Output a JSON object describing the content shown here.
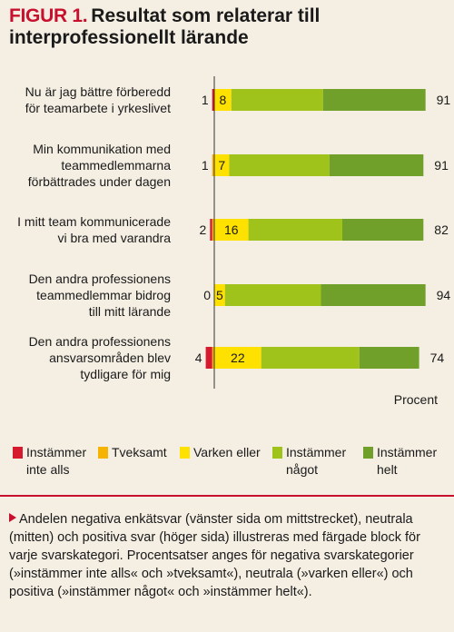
{
  "header": {
    "figure_label": "FIGUR 1.",
    "title": "Resultat som relaterar till interprofessionellt lärande"
  },
  "chart_data": {
    "type": "bar",
    "orientation": "horizontal",
    "stacked": true,
    "diverging": true,
    "categories": [
      "Nu är jag bättre förberedd för teamarbete i yrkeslivet",
      "Min kommunikation med teammedlemmarna förbättrades under dagen",
      "I mitt team kommunicerade vi bra med varandra",
      "Den andra professionens teammedlemmar bidrog till mitt lärande",
      "Den andra professionens ansvarsområden blev tydligare för mig"
    ],
    "category_lines": [
      [
        "Nu är jag bättre förberedd",
        "för teamarbete i yrkeslivet"
      ],
      [
        "Min kommunikation med",
        "teammedlemmarna",
        "förbättrades under dagen"
      ],
      [
        "I mitt team kommunicerade",
        "vi bra med varandra"
      ],
      [
        "Den andra professionens",
        "teammedlemmar bidrog",
        "till mitt lärande"
      ],
      [
        "Den andra professionens",
        "ansvarsområden blev",
        "tydligare för mig"
      ]
    ],
    "series": [
      {
        "name": "Instämmer inte alls",
        "color": "#d7192d",
        "values": [
          1,
          0,
          1,
          0,
          3
        ]
      },
      {
        "name": "Tveksamt",
        "color": "#f6b300",
        "values": [
          0,
          1,
          1,
          0,
          1
        ]
      },
      {
        "name": "Varken eller",
        "color": "#ffe100",
        "values": [
          8,
          7,
          16,
          5,
          22
        ]
      },
      {
        "name": "Instämmer något",
        "color": "#9fc31b",
        "values": [
          43,
          47,
          44,
          45,
          46
        ]
      },
      {
        "name": "Instämmer helt",
        "color": "#71a02a",
        "values": [
          48,
          44,
          38,
          49,
          28
        ]
      }
    ],
    "legend_lines": [
      [
        "Instämmer",
        "inte alls"
      ],
      [
        "Tveksamt"
      ],
      [
        "Varken eller"
      ],
      [
        "Instämmer",
        "något"
      ],
      [
        "Instämmer",
        "helt"
      ]
    ],
    "negative_labels": [
      "1",
      "1",
      "2",
      "0",
      "4"
    ],
    "neutral_labels": [
      "8",
      "7",
      "16",
      "5",
      "22"
    ],
    "positive_labels": [
      "91",
      "91",
      "82",
      "94",
      "74"
    ],
    "xlabel": "Procent",
    "legend_position": "bottom",
    "grid": false
  },
  "footnote": "Andelen negativa enkätsvar (vänster sida om mittstrecket), neutrala (mitten) och positiva svar (höger sida) illustreras med färgade block för varje svarskategori. Procentsatser anges för negativa svarskategorier (»instämmer inte alls« och »tveksamt«), neutrala (»varken eller«) och positiva (»instämmer något« och »instämmer helt«)."
}
